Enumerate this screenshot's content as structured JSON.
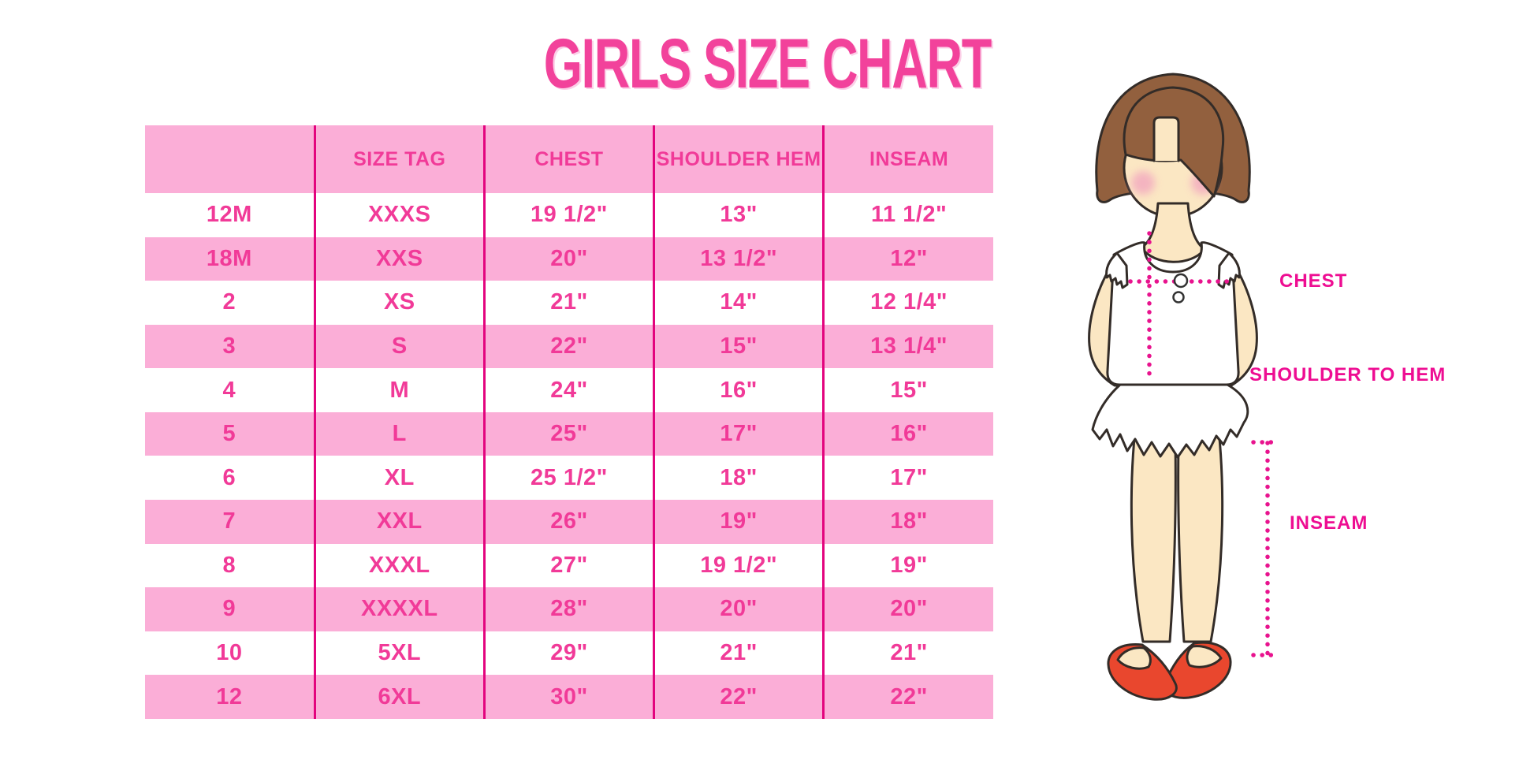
{
  "title": "GIRLS SIZE CHART",
  "chart_data": {
    "type": "table",
    "title": "GIRLS SIZE CHART",
    "columns": [
      "",
      "SIZE TAG",
      "CHEST",
      "SHOULDER HEM",
      "INSEAM"
    ],
    "rows": [
      [
        "12M",
        "XXXS",
        "19 1/2\"",
        "13\"",
        "11 1/2\""
      ],
      [
        "18M",
        "XXS",
        "20\"",
        "13 1/2\"",
        "12\""
      ],
      [
        "2",
        "XS",
        "21\"",
        "14\"",
        "12 1/4\""
      ],
      [
        "3",
        "S",
        "22\"",
        "15\"",
        "13 1/4\""
      ],
      [
        "4",
        "M",
        "24\"",
        "16\"",
        "15\""
      ],
      [
        "5",
        "L",
        "25\"",
        "17\"",
        "16\""
      ],
      [
        "6",
        "XL",
        "25 1/2\"",
        "18\"",
        "17\""
      ],
      [
        "7",
        "XXL",
        "26\"",
        "19\"",
        "18\""
      ],
      [
        "8",
        "XXXL",
        "27\"",
        "19 1/2\"",
        "19\""
      ],
      [
        "9",
        "XXXXL",
        "28\"",
        "20\"",
        "20\""
      ],
      [
        "10",
        "5XL",
        "29\"",
        "21\"",
        "21\""
      ],
      [
        "12",
        "6XL",
        "30\"",
        "22\"",
        "22\""
      ]
    ],
    "layout": {
      "row_striping": "alternating pink and white, header pink",
      "column_dividers": "vertical magenta lines"
    }
  },
  "diagram": {
    "labels": {
      "chest": "CHEST",
      "shoulder_to_hem": "SHOULDER TO HEM",
      "inseam": "INSEAM"
    }
  },
  "colors": {
    "title_pink": "#F2429B",
    "row_pink": "#FBAED7",
    "table_text": "#F13A98",
    "divider": "#E3047E",
    "label_magenta": "#EE0D92",
    "dot": "#E8138E",
    "hair": "#92603E",
    "skin": "#FBE7C3",
    "blush": "#F3ACC0",
    "shoe": "#E9472E",
    "outline": "#332C28"
  }
}
